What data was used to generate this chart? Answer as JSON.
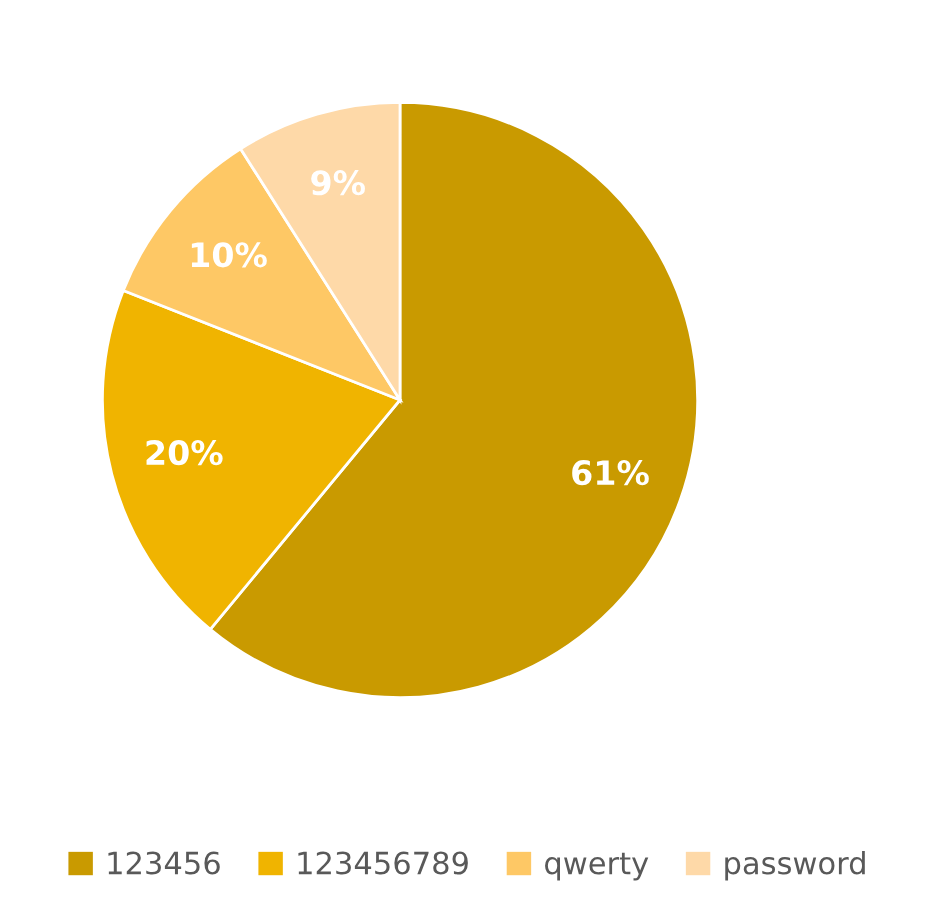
{
  "chart_data": {
    "type": "pie",
    "categories": [
      "123456",
      "123456789",
      "qwerty",
      "password"
    ],
    "values": [
      61,
      20,
      10,
      9
    ],
    "colors": [
      "#c99a00",
      "#f0b400",
      "#fec865",
      "#fed9a8"
    ],
    "value_labels": [
      "61%",
      "20%",
      "10%",
      "9%"
    ],
    "legend": "bottom"
  }
}
